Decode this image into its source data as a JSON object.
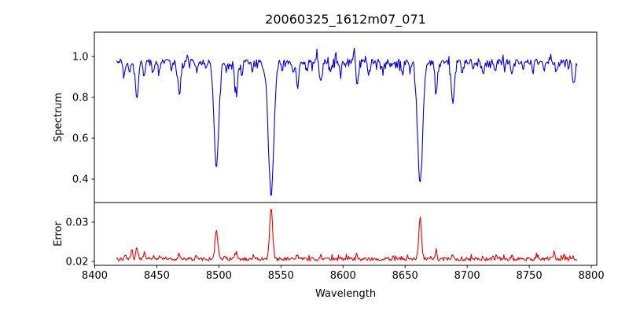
{
  "title": "20060325_1612m07_071",
  "chart_data": {
    "type": "line",
    "title": "20060325_1612m07_071",
    "xlabel": "Wavelength",
    "grid": false,
    "legend": "none",
    "xlim": [
      8399.7,
      8804.4
    ],
    "xticks": [
      8400,
      8450,
      8500,
      8550,
      8600,
      8650,
      8700,
      8750,
      8800
    ],
    "xtick_labels": [
      "8400",
      "8450",
      "8500",
      "8550",
      "8600",
      "8650",
      "8700",
      "8750",
      "8800"
    ],
    "x_data_start": 8417.5,
    "x_data_end": 8788.5,
    "n_points": 580,
    "seed": 42,
    "panels": [
      {
        "name": "spectrum",
        "ylabel": "Spectrum",
        "color": "#0000e0",
        "ylim": [
          0.285,
          1.119
        ],
        "yticks": [
          0.4,
          0.6,
          0.8,
          1.0
        ],
        "ytick_labels": [
          "0.4",
          "0.6",
          "0.8",
          "1.0"
        ],
        "continuum": 0.975,
        "noise_amplitude": 0.013,
        "absorption_lines": [
          {
            "c": 8423.5,
            "d": 0.055,
            "s": 0.9
          },
          {
            "c": 8428.0,
            "d": 0.06,
            "s": 0.8
          },
          {
            "c": 8434.0,
            "d": 0.185,
            "s": 1.2
          },
          {
            "c": 8440.0,
            "d": 0.07,
            "s": 0.8
          },
          {
            "c": 8447.0,
            "d": 0.05,
            "s": 0.7
          },
          {
            "c": 8452.0,
            "d": 0.05,
            "s": 0.7
          },
          {
            "c": 8462.0,
            "d": 0.05,
            "s": 0.7
          },
          {
            "c": 8468.0,
            "d": 0.155,
            "s": 1.1
          },
          {
            "c": 8482.0,
            "d": 0.06,
            "s": 0.8
          },
          {
            "c": 8490.0,
            "d": 0.04,
            "s": 0.7
          },
          {
            "c": 8498.0,
            "d": 0.51,
            "s": 1.9
          },
          {
            "c": 8506.0,
            "d": 0.04,
            "s": 0.7
          },
          {
            "c": 8514.0,
            "d": 0.165,
            "s": 1.1
          },
          {
            "c": 8518.5,
            "d": 0.07,
            "s": 0.7
          },
          {
            "c": 8527.0,
            "d": 0.05,
            "s": 0.7
          },
          {
            "c": 8536.0,
            "d": 0.04,
            "s": 0.7
          },
          {
            "c": 8542.1,
            "d": 0.65,
            "s": 2.2
          },
          {
            "c": 8551.0,
            "d": 0.04,
            "s": 0.7
          },
          {
            "c": 8560.0,
            "d": 0.06,
            "s": 0.8
          },
          {
            "c": 8563.5,
            "d": 0.125,
            "s": 0.9
          },
          {
            "c": 8571.0,
            "d": 0.04,
            "s": 0.7
          },
          {
            "c": 8582.0,
            "d": 0.105,
            "s": 0.9
          },
          {
            "c": 8590.0,
            "d": 0.04,
            "s": 0.7
          },
          {
            "c": 8598.0,
            "d": 0.065,
            "s": 0.8
          },
          {
            "c": 8611.5,
            "d": 0.115,
            "s": 0.9
          },
          {
            "c": 8621.0,
            "d": 0.065,
            "s": 0.8
          },
          {
            "c": 8632.0,
            "d": 0.04,
            "s": 0.7
          },
          {
            "c": 8648.0,
            "d": 0.055,
            "s": 0.8
          },
          {
            "c": 8654.0,
            "d": 0.05,
            "s": 0.7
          },
          {
            "c": 8662.1,
            "d": 0.6,
            "s": 2.0
          },
          {
            "c": 8675.0,
            "d": 0.155,
            "s": 0.9
          },
          {
            "c": 8688.5,
            "d": 0.195,
            "s": 1.2
          },
          {
            "c": 8696.0,
            "d": 0.05,
            "s": 0.7
          },
          {
            "c": 8705.0,
            "d": 0.04,
            "s": 0.7
          },
          {
            "c": 8713.0,
            "d": 0.06,
            "s": 0.8
          },
          {
            "c": 8722.0,
            "d": 0.04,
            "s": 0.7
          },
          {
            "c": 8730.0,
            "d": 0.05,
            "s": 0.7
          },
          {
            "c": 8736.0,
            "d": 0.065,
            "s": 0.8
          },
          {
            "c": 8745.0,
            "d": 0.04,
            "s": 0.7
          },
          {
            "c": 8753.0,
            "d": 0.05,
            "s": 0.7
          },
          {
            "c": 8762.0,
            "d": 0.05,
            "s": 0.7
          },
          {
            "c": 8772.0,
            "d": 0.05,
            "s": 0.7
          },
          {
            "c": 8786.0,
            "d": 0.11,
            "s": 0.9
          }
        ],
        "emission_spikes": [
          {
            "c": 8609.0,
            "h": 0.075,
            "s": 0.5
          },
          {
            "c": 8579.0,
            "h": 0.05,
            "s": 0.45
          },
          {
            "c": 8475.0,
            "h": 0.045,
            "s": 0.45
          },
          {
            "c": 8594.0,
            "h": 0.04,
            "s": 0.45
          },
          {
            "c": 8729.0,
            "h": 0.05,
            "s": 0.45
          },
          {
            "c": 8767.0,
            "h": 0.05,
            "s": 0.45
          }
        ]
      },
      {
        "name": "error",
        "ylabel": "Error",
        "color": "#ee0000",
        "ylim": [
          0.019,
          0.035
        ],
        "yticks": [
          0.02,
          0.03
        ],
        "ytick_labels": [
          "0.02",
          "0.03"
        ],
        "baseline": 0.0206,
        "noise_amplitude": 0.00045,
        "peaks": [
          {
            "c": 8425.0,
            "h": 0.0012,
            "s": 0.6
          },
          {
            "c": 8430.0,
            "h": 0.0024,
            "s": 0.7
          },
          {
            "c": 8434.0,
            "h": 0.0028,
            "s": 0.9
          },
          {
            "c": 8440.0,
            "h": 0.0016,
            "s": 0.7
          },
          {
            "c": 8452.0,
            "h": 0.0008,
            "s": 0.6
          },
          {
            "c": 8468.0,
            "h": 0.0016,
            "s": 0.8
          },
          {
            "c": 8482.0,
            "h": 0.0008,
            "s": 0.6
          },
          {
            "c": 8498.0,
            "h": 0.0076,
            "s": 1.1
          },
          {
            "c": 8505.0,
            "h": 0.0009,
            "s": 0.6
          },
          {
            "c": 8514.0,
            "h": 0.0016,
            "s": 0.8
          },
          {
            "c": 8528.0,
            "h": 0.0008,
            "s": 0.6
          },
          {
            "c": 8542.1,
            "h": 0.0128,
            "s": 1.2
          },
          {
            "c": 8563.0,
            "h": 0.0012,
            "s": 0.7
          },
          {
            "c": 8582.0,
            "h": 0.0009,
            "s": 0.6
          },
          {
            "c": 8598.0,
            "h": 0.0007,
            "s": 0.6
          },
          {
            "c": 8611.0,
            "h": 0.001,
            "s": 0.6
          },
          {
            "c": 8640.0,
            "h": 0.0007,
            "s": 0.5
          },
          {
            "c": 8662.1,
            "h": 0.0106,
            "s": 1.1
          },
          {
            "c": 8675.0,
            "h": 0.0026,
            "s": 0.55
          },
          {
            "c": 8688.0,
            "h": 0.0013,
            "s": 0.7
          },
          {
            "c": 8713.0,
            "h": 0.0008,
            "s": 0.6
          },
          {
            "c": 8736.0,
            "h": 0.0009,
            "s": 0.6
          },
          {
            "c": 8756.0,
            "h": 0.0011,
            "s": 0.6
          },
          {
            "c": 8770.0,
            "h": 0.0021,
            "s": 0.6
          },
          {
            "c": 8778.0,
            "h": 0.001,
            "s": 0.5
          }
        ]
      }
    ],
    "colors": {
      "spectrum_line": "#0000e0",
      "error_line": "#ee0000",
      "axes": "#000000",
      "background": "#ffffff"
    }
  }
}
